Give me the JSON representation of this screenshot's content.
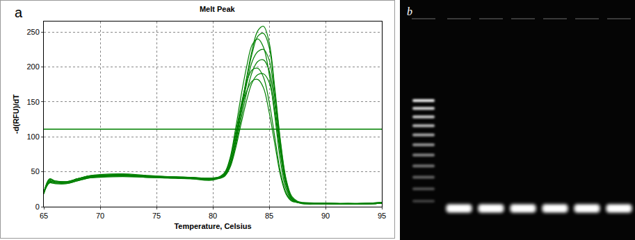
{
  "chart_data": {
    "type": "line",
    "panel_label": "a",
    "title": "Melt Peak",
    "x_label": "Temperature, Celsius",
    "y_label": "-d(RFU)/dT",
    "x": [
      65,
      65.5,
      66,
      67,
      68,
      69,
      70,
      72,
      74,
      76,
      78,
      80,
      81,
      81.5,
      82,
      82.5,
      83,
      83.5,
      84,
      84.5,
      85,
      85.5,
      86,
      86.5,
      87,
      87.5,
      88,
      90,
      92,
      94,
      95
    ],
    "series": [
      {
        "color": "#008000",
        "values": [
          20,
          40,
          37,
          36,
          40,
          44,
          45,
          46,
          44,
          43,
          42,
          40,
          45,
          60,
          95,
          140,
          185,
          225,
          252,
          258,
          235,
          170,
          95,
          40,
          15,
          8,
          6,
          5,
          5,
          5,
          6
        ]
      },
      {
        "color": "#008000",
        "values": [
          20,
          39,
          37,
          36,
          40,
          44,
          45,
          46,
          44,
          43,
          42,
          41,
          45,
          60,
          93,
          138,
          182,
          220,
          244,
          248,
          228,
          165,
          92,
          38,
          13,
          7,
          5,
          5,
          4,
          5,
          6
        ]
      },
      {
        "color": "#008000",
        "values": [
          18,
          38,
          36,
          35,
          39,
          43,
          44,
          45,
          44,
          42,
          41,
          40,
          48,
          68,
          110,
          158,
          200,
          232,
          240,
          228,
          190,
          130,
          65,
          25,
          10,
          7,
          5,
          5,
          4,
          5,
          5
        ]
      },
      {
        "color": "#008000",
        "values": [
          22,
          36,
          35,
          35,
          40,
          44,
          46,
          47,
          45,
          43,
          42,
          41,
          44,
          58,
          90,
          132,
          175,
          208,
          222,
          225,
          210,
          155,
          85,
          35,
          12,
          7,
          5,
          4,
          4,
          5,
          6
        ]
      },
      {
        "color": "#008000",
        "values": [
          21,
          37,
          35,
          34,
          38,
          42,
          44,
          45,
          43,
          42,
          41,
          40,
          44,
          57,
          86,
          125,
          163,
          193,
          208,
          210,
          195,
          145,
          80,
          33,
          12,
          7,
          5,
          5,
          4,
          4,
          5
        ]
      },
      {
        "color": "#008000",
        "values": [
          19,
          35,
          34,
          34,
          38,
          42,
          43,
          44,
          43,
          42,
          41,
          39,
          47,
          66,
          104,
          145,
          178,
          196,
          198,
          185,
          150,
          100,
          50,
          20,
          9,
          6,
          5,
          4,
          4,
          4,
          5
        ]
      },
      {
        "color": "#008000",
        "values": [
          20,
          34,
          33,
          33,
          37,
          41,
          43,
          44,
          42,
          41,
          40,
          39,
          43,
          55,
          82,
          118,
          152,
          178,
          189,
          190,
          178,
          135,
          75,
          30,
          11,
          6,
          5,
          4,
          4,
          4,
          5
        ]
      },
      {
        "color": "#008000",
        "values": [
          19,
          34,
          33,
          33,
          37,
          41,
          42,
          43,
          42,
          41,
          40,
          38,
          46,
          64,
          100,
          138,
          165,
          180,
          182,
          170,
          135,
          90,
          45,
          18,
          8,
          6,
          4,
          4,
          4,
          4,
          5
        ]
      }
    ],
    "threshold": 111,
    "color": "#008000",
    "xlim": [
      65,
      95
    ],
    "xticks": [
      65,
      70,
      75,
      80,
      85,
      90,
      95
    ],
    "ylim": [
      0,
      265
    ],
    "yticks": [
      0,
      50,
      100,
      150,
      200,
      250
    ],
    "grid": true
  },
  "gel_image": {
    "panel_label": "b",
    "ladder_bands": 11,
    "sample_lanes": 6
  }
}
